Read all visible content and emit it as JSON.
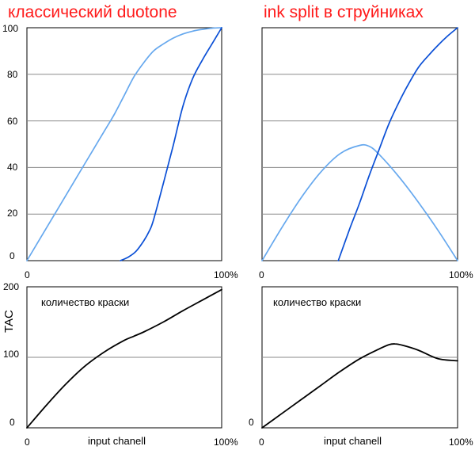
{
  "chart_data": [
    {
      "panel": "top-left",
      "type": "line",
      "title": "классический duotone",
      "xlabel": "",
      "ylabel": "",
      "xlim": [
        0,
        100
      ],
      "ylim": [
        0,
        100
      ],
      "yticks": [
        "0",
        "20",
        "40",
        "60",
        "80",
        "100"
      ],
      "xticks": [
        "0",
        "100%"
      ],
      "grid": true,
      "colors": {
        "light": "#66a8ee",
        "dark": "#0a4fd6"
      },
      "series": [
        {
          "color": "#66a8ee",
          "points": [
            [
              0,
              0
            ],
            [
              10,
              14
            ],
            [
              20,
              28
            ],
            [
              30,
              42
            ],
            [
              40,
              56
            ],
            [
              45,
              63
            ],
            [
              50,
              71
            ],
            [
              55,
              79
            ],
            [
              60,
              85
            ],
            [
              65,
              90
            ],
            [
              70,
              93
            ],
            [
              75,
              95.5
            ],
            [
              80,
              97.3
            ],
            [
              85,
              98.5
            ],
            [
              90,
              99.3
            ],
            [
              95,
              99.8
            ],
            [
              100,
              100
            ]
          ]
        },
        {
          "color": "#0a4fd6",
          "points": [
            [
              48,
              0
            ],
            [
              52,
              1.5
            ],
            [
              56,
              4
            ],
            [
              60,
              8.5
            ],
            [
              63,
              13
            ],
            [
              65,
              17.5
            ],
            [
              70,
              33
            ],
            [
              75,
              49
            ],
            [
              80,
              66
            ],
            [
              85,
              78
            ],
            [
              90,
              86
            ],
            [
              95,
              93
            ],
            [
              100,
              100
            ]
          ]
        }
      ]
    },
    {
      "panel": "top-right",
      "type": "line",
      "title": "ink split в струйниках",
      "xlabel": "",
      "ylabel": "",
      "xlim": [
        0,
        100
      ],
      "ylim": [
        0,
        100
      ],
      "xticks": [
        "0",
        "100%"
      ],
      "grid": true,
      "colors": {
        "light": "#66a8ee",
        "dark": "#0a4fd6"
      },
      "series": [
        {
          "color": "#66a8ee",
          "points": [
            [
              0,
              0
            ],
            [
              10,
              14
            ],
            [
              20,
              27
            ],
            [
              30,
              38
            ],
            [
              40,
              46
            ],
            [
              50,
              49.5
            ],
            [
              55,
              49
            ],
            [
              60,
              45.5
            ],
            [
              70,
              36
            ],
            [
              80,
              25
            ],
            [
              90,
              13
            ],
            [
              100,
              0
            ]
          ]
        },
        {
          "color": "#0a4fd6",
          "points": [
            [
              39,
              0
            ],
            [
              45,
              14
            ],
            [
              50,
              25
            ],
            [
              55,
              37
            ],
            [
              60,
              48
            ],
            [
              65,
              59
            ],
            [
              70,
              68
            ],
            [
              75,
              76
            ],
            [
              80,
              83
            ],
            [
              85,
              88
            ],
            [
              90,
              92.5
            ],
            [
              95,
              96.5
            ],
            [
              100,
              100
            ]
          ]
        }
      ]
    },
    {
      "panel": "bottom-left",
      "type": "line",
      "annotation": "количество краски",
      "xlabel": "input chanell",
      "ylabel": "TAC",
      "xlim": [
        0,
        100
      ],
      "ylim": [
        0,
        200
      ],
      "yticks": [
        "0",
        "100",
        "200"
      ],
      "xticks": [
        "0",
        "100%"
      ],
      "grid": true,
      "colors": {
        "line": "#000000"
      },
      "series": [
        {
          "color": "#000000",
          "points": [
            [
              0,
              0
            ],
            [
              10,
              32
            ],
            [
              20,
              62
            ],
            [
              30,
              88
            ],
            [
              40,
              108
            ],
            [
              50,
              124
            ],
            [
              55,
              130
            ],
            [
              60,
              136
            ],
            [
              70,
              150
            ],
            [
              80,
              166
            ],
            [
              90,
              181
            ],
            [
              100,
              196
            ]
          ]
        }
      ]
    },
    {
      "panel": "bottom-right",
      "type": "line",
      "annotation": "количество краски",
      "xlabel": "input chanell",
      "ylabel": "",
      "xlim": [
        0,
        100
      ],
      "ylim": [
        0,
        200
      ],
      "yticks": [
        "0"
      ],
      "xticks": [
        "0",
        "100%"
      ],
      "grid": true,
      "colors": {
        "line": "#000000"
      },
      "series": [
        {
          "color": "#000000",
          "points": [
            [
              0,
              0
            ],
            [
              10,
              20
            ],
            [
              20,
              40
            ],
            [
              30,
              60
            ],
            [
              40,
              80
            ],
            [
              50,
              98
            ],
            [
              60,
              112
            ],
            [
              65,
              118
            ],
            [
              68,
              119
            ],
            [
              72,
              117
            ],
            [
              80,
              110
            ],
            [
              90,
              98
            ],
            [
              100,
              95
            ]
          ]
        }
      ]
    }
  ]
}
